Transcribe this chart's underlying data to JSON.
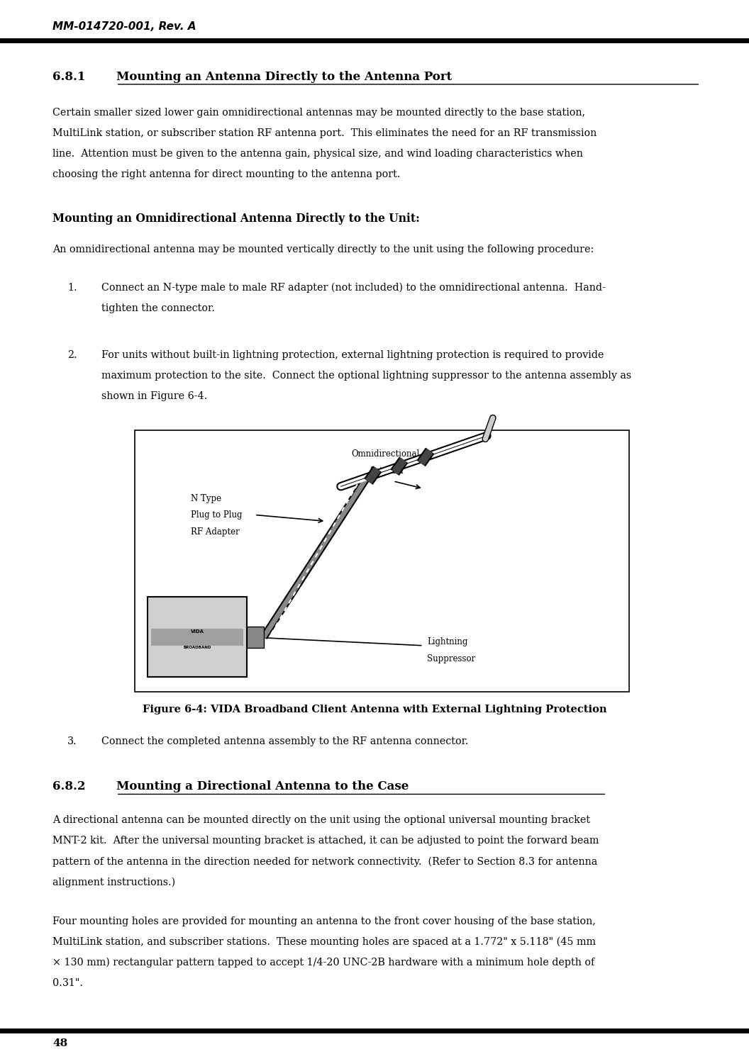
{
  "header_text": "MM-014720-001, Rev. A",
  "page_number": "48",
  "bg_color": "#ffffff",
  "text_color": "#000000",
  "para1_lines": [
    "Certain smaller sized lower gain omnidirectional antennas may be mounted directly to the base station,",
    "MultiLink station, or subscriber station RF antenna port.  This eliminates the need for an RF transmission",
    "line.  Attention must be given to the antenna gain, physical size, and wind loading characteristics when",
    "choosing the right antenna for direct mounting to the antenna port."
  ],
  "subheading": "Mounting an Omnidirectional Antenna Directly to the Unit:",
  "intro_line": "An omnidirectional antenna may be mounted vertically directly to the unit using the following procedure:",
  "item1_lines": [
    "Connect an N-type male to male RF adapter (not included) to the omnidirectional antenna.  Hand-",
    "tighten the connector."
  ],
  "item2_lines": [
    "For units without built-in lightning protection, external lightning protection is required to provide",
    "maximum protection to the site.  Connect the optional lightning suppressor to the antenna assembly as",
    "shown in Figure 6-4."
  ],
  "fig_caption": "Figure 6-4: VIDA Broadband Client Antenna with External Lightning Protection",
  "item3_text": "Connect the completed antenna assembly to the RF antenna connector.",
  "para2_lines": [
    "A directional antenna can be mounted directly on the unit using the optional universal mounting bracket",
    "MNT-2 kit.  After the universal mounting bracket is attached, it can be adjusted to point the forward beam",
    "pattern of the antenna in the direction needed for network connectivity.  (Refer to Section 8.3 for antenna",
    "alignment instructions.)"
  ],
  "para3_lines": [
    "Four mounting holes are provided for mounting an antenna to the front cover housing of the base station,",
    "MultiLink station, and subscriber stations.  These mounting holes are spaced at a 1.772\" x 5.118\" (45 mm",
    "× 130 mm) rectangular pattern tapped to accept 1/4-20 UNC-2B hardware with a minimum hole depth of",
    "0.31\"."
  ]
}
